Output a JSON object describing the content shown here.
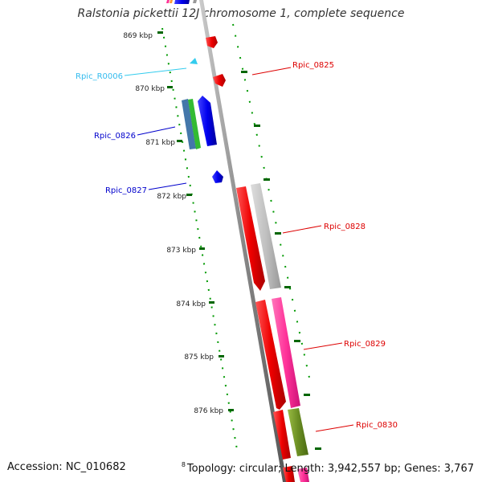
{
  "title": "Ralstonia pickettii 12J chromosome 1, complete sequence",
  "footer": {
    "accession": "Accession: NC_010682",
    "superscript": "8",
    "summary": "Topology: circular; Length: 3,942,557 bp; Genes: 3,767"
  },
  "scale": {
    "ticks": [
      "869 kbp",
      "870 kbp",
      "871 kbp",
      "872 kbp",
      "873 kbp",
      "874 kbp",
      "875 kbp",
      "876 kbp"
    ]
  },
  "genes": [
    {
      "label": "Rpic_R0006",
      "color": "#33ccee"
    },
    {
      "label": "Rpic_0825",
      "color": "#dd0000"
    },
    {
      "label": "Rpic_0826",
      "color": "#0000cc"
    },
    {
      "label": "Rpic_0827",
      "color": "#0000cc"
    },
    {
      "label": "Rpic_0828",
      "color": "#dd0000"
    },
    {
      "label": "Rpic_0829",
      "color": "#dd0000"
    },
    {
      "label": "Rpic_0830",
      "color": "#dd0000"
    }
  ],
  "colors": {
    "backbone": "#888888",
    "tick": "#006600",
    "cds_red": "#ff0000",
    "cds_blue": "#0000ee",
    "cds_grey": "#bbbbbb",
    "cds_pink": "#ff3399",
    "cds_olive": "#6b8e23",
    "cds_green": "#33bb33",
    "cds_steel": "#4477aa"
  }
}
